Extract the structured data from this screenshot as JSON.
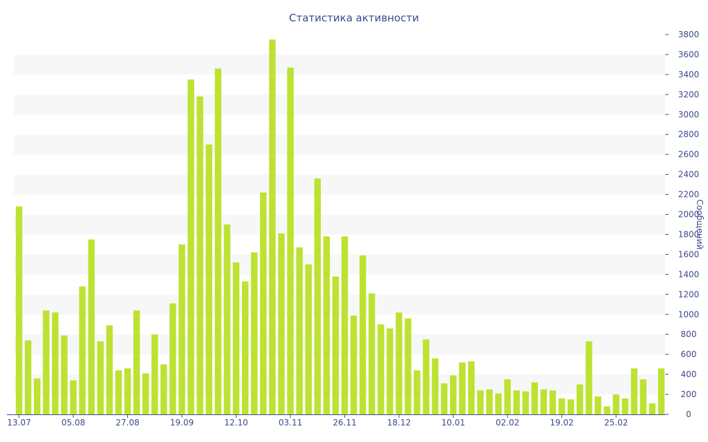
{
  "chart_data": {
    "type": "bar",
    "title": "Статистика активности",
    "xlabel": "",
    "ylabel": "Сообщений",
    "ylim": [
      0,
      3800
    ],
    "y_ticks": [
      0,
      200,
      400,
      600,
      800,
      1000,
      1200,
      1400,
      1600,
      1800,
      2000,
      2200,
      2400,
      2600,
      2800,
      3000,
      3200,
      3400,
      3600,
      3800
    ],
    "y_axis_side": "right",
    "grid": "alternating horizontal bands",
    "x_tick_labels": [
      {
        "label": "13.07",
        "index": 0
      },
      {
        "label": "05.08",
        "index": 6
      },
      {
        "label": "27.08",
        "index": 12
      },
      {
        "label": "19.09",
        "index": 18
      },
      {
        "label": "12.10",
        "index": 24
      },
      {
        "label": "03.11",
        "index": 30
      },
      {
        "label": "26.11",
        "index": 36
      },
      {
        "label": "18.12",
        "index": 42
      },
      {
        "label": "10.01",
        "index": 48
      },
      {
        "label": "02.02",
        "index": 54
      },
      {
        "label": "19.02",
        "index": 60
      },
      {
        "label": "25.02",
        "index": 66
      }
    ],
    "values": [
      2080,
      740,
      360,
      1040,
      1020,
      790,
      340,
      1280,
      1750,
      730,
      890,
      440,
      460,
      1040,
      410,
      800,
      500,
      1110,
      1700,
      3350,
      3180,
      2700,
      3460,
      1900,
      1520,
      1330,
      1620,
      2220,
      3750,
      1810,
      3470,
      1670,
      1500,
      2360,
      1780,
      1380,
      1780,
      990,
      1590,
      1210,
      900,
      860,
      1020,
      960,
      440,
      750,
      560,
      310,
      390,
      520,
      530,
      240,
      250,
      210,
      350,
      240,
      230,
      320,
      250,
      240,
      160,
      150,
      300,
      730,
      180,
      80,
      200,
      160,
      460,
      350,
      110,
      460
    ],
    "colors": {
      "bar": "#bde232",
      "band": "#f7f7f7",
      "axis": "#3a4a8a"
    }
  }
}
